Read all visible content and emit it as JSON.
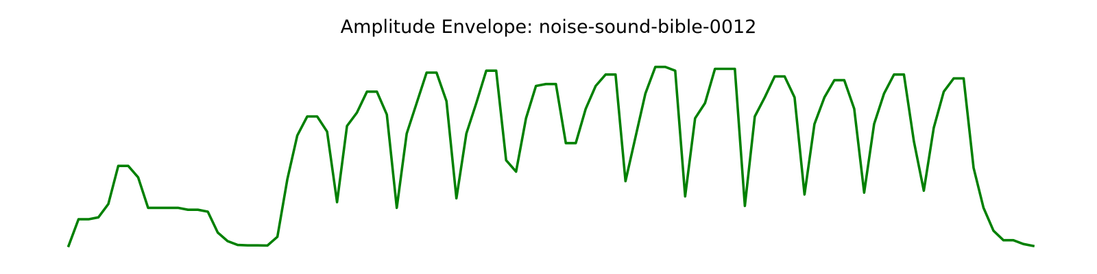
{
  "chart_data": {
    "type": "line",
    "title": "Amplitude Envelope: noise-sound-bible-0012",
    "xlabel": "",
    "ylabel": "",
    "grid": false,
    "axes_visible": false,
    "series": [
      {
        "color": "#008000",
        "values": [
          0.0,
          0.14,
          0.14,
          0.15,
          0.22,
          0.42,
          0.42,
          0.36,
          0.2,
          0.2,
          0.2,
          0.2,
          0.19,
          0.19,
          0.18,
          0.07,
          0.025,
          0.005,
          0.003,
          0.003,
          0.002,
          0.048,
          0.35,
          0.58,
          0.68,
          0.68,
          0.6,
          0.23,
          0.63,
          0.7,
          0.81,
          0.81,
          0.69,
          0.2,
          0.59,
          0.75,
          0.91,
          0.91,
          0.76,
          0.25,
          0.59,
          0.75,
          0.92,
          0.92,
          0.45,
          0.39,
          0.67,
          0.84,
          0.85,
          0.85,
          0.54,
          0.54,
          0.72,
          0.84,
          0.9,
          0.9,
          0.34,
          0.57,
          0.8,
          0.94,
          0.94,
          0.92,
          0.26,
          0.67,
          0.75,
          0.93,
          0.93,
          0.93,
          0.21,
          0.68,
          0.78,
          0.89,
          0.89,
          0.78,
          0.27,
          0.64,
          0.78,
          0.87,
          0.87,
          0.72,
          0.28,
          0.64,
          0.8,
          0.9,
          0.9,
          0.55,
          0.29,
          0.62,
          0.81,
          0.88,
          0.88,
          0.41,
          0.2,
          0.08,
          0.03,
          0.03,
          0.01,
          0.0
        ]
      }
    ]
  }
}
